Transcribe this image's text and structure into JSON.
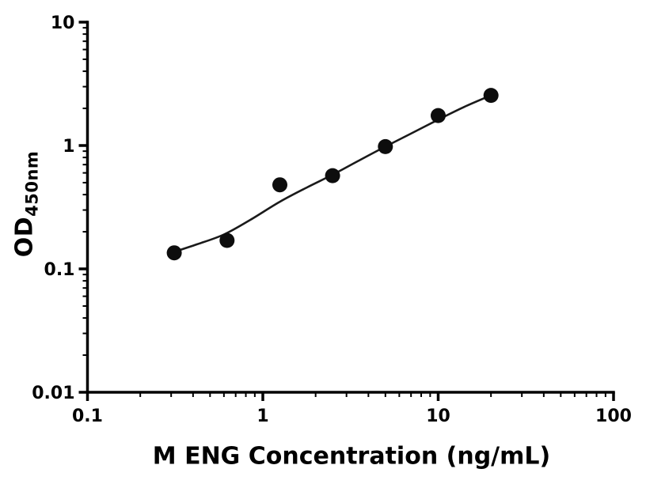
{
  "chart_data": {
    "type": "scatter",
    "title": "",
    "xlabel": "M ENG Concentration (ng/mL)",
    "ylabel_main": "OD",
    "ylabel_sub": "450nm",
    "x_scale": "log",
    "y_scale": "log",
    "xlim": [
      0.1,
      100
    ],
    "ylim": [
      0.01,
      10
    ],
    "grid": false,
    "legend": "none",
    "x_ticks": [
      {
        "value": 0.1,
        "label": "0.1"
      },
      {
        "value": 1,
        "label": "1"
      },
      {
        "value": 10,
        "label": "10"
      },
      {
        "value": 100,
        "label": "100"
      }
    ],
    "y_ticks": [
      {
        "value": 0.01,
        "label": "0.01"
      },
      {
        "value": 0.1,
        "label": "0.1"
      },
      {
        "value": 1,
        "label": "1"
      },
      {
        "value": 10,
        "label": "10"
      }
    ],
    "points": [
      {
        "x": 0.3125,
        "y": 0.135
      },
      {
        "x": 0.625,
        "y": 0.17
      },
      {
        "x": 1.25,
        "y": 0.48
      },
      {
        "x": 2.5,
        "y": 0.57
      },
      {
        "x": 5,
        "y": 0.98
      },
      {
        "x": 10,
        "y": 1.75
      },
      {
        "x": 20,
        "y": 2.55
      }
    ],
    "fit_curve": [
      [
        0.3,
        0.135
      ],
      [
        0.42,
        0.158
      ],
      [
        0.6,
        0.19
      ],
      [
        0.85,
        0.25
      ],
      [
        1.25,
        0.35
      ],
      [
        1.8,
        0.46
      ],
      [
        2.5,
        0.58
      ],
      [
        3.5,
        0.75
      ],
      [
        5,
        0.98
      ],
      [
        7,
        1.25
      ],
      [
        10,
        1.62
      ],
      [
        14,
        2.05
      ],
      [
        20,
        2.55
      ]
    ],
    "colors": {
      "axis": "#000000",
      "point": "#0d0d0d",
      "curve": "#1a1a1a",
      "background": "#ffffff"
    }
  }
}
